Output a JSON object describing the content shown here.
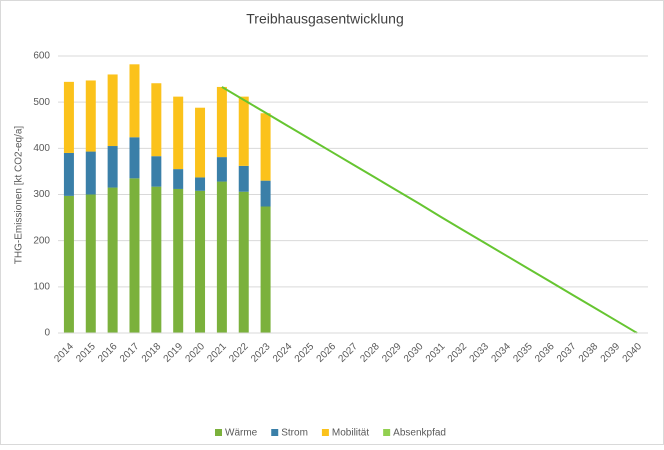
{
  "chart_data": {
    "type": "bar",
    "title": "Treibhausgasentwicklung",
    "y_label": "THG-Emissionen [kt CO2-eq/a]",
    "categories": [
      "2014",
      "2015",
      "2016",
      "2017",
      "2018",
      "2019",
      "2020",
      "2021",
      "2022",
      "2023",
      "2024",
      "2025",
      "2026",
      "2027",
      "2028",
      "2029",
      "2030",
      "2031",
      "2032",
      "2033",
      "2034",
      "2035",
      "2036",
      "2037",
      "2038",
      "2039",
      "2040"
    ],
    "series": [
      {
        "name": "Wärme",
        "type": "bar",
        "color": "#7bb13c",
        "values": [
          297,
          300,
          315,
          335,
          317,
          312,
          308,
          328,
          306,
          274,
          null,
          null,
          null,
          null,
          null,
          null,
          null,
          null,
          null,
          null,
          null,
          null,
          null,
          null,
          null,
          null,
          null
        ]
      },
      {
        "name": "Strom",
        "type": "bar",
        "color": "#3a7fa8",
        "values": [
          93,
          93,
          90,
          89,
          66,
          43,
          29,
          53,
          56,
          56,
          null,
          null,
          null,
          null,
          null,
          null,
          null,
          null,
          null,
          null,
          null,
          null,
          null,
          null,
          null,
          null,
          null
        ]
      },
      {
        "name": "Mobilität",
        "type": "bar",
        "color": "#fbc21b",
        "values": [
          154,
          154,
          155,
          158,
          158,
          157,
          151,
          152,
          150,
          146,
          null,
          null,
          null,
          null,
          null,
          null,
          null,
          null,
          null,
          null,
          null,
          null,
          null,
          null,
          null,
          null,
          null
        ]
      },
      {
        "name": "Absenkpfad",
        "type": "line",
        "color": "#66c531",
        "values": [
          null,
          null,
          null,
          null,
          null,
          null,
          null,
          533,
          505,
          477,
          449,
          421,
          393,
          365,
          337,
          309,
          281,
          252,
          224,
          196,
          168,
          140,
          112,
          84,
          56,
          28,
          0
        ]
      }
    ],
    "ylim": [
      0,
      600
    ],
    "yticks": [
      0,
      100,
      200,
      300,
      400,
      500,
      600
    ],
    "grid": true,
    "legend": "bottom"
  }
}
